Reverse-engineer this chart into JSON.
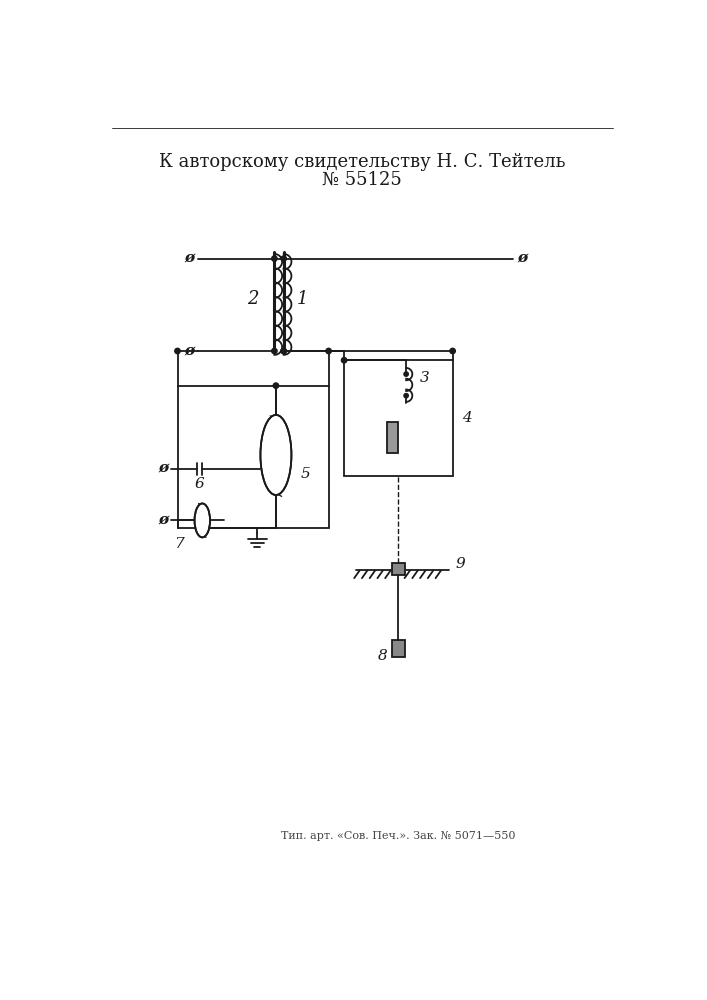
{
  "title_line1": "К авторскому свидетельству Н. С. Тейтель",
  "title_line2": "№ 55125",
  "footer": "Тип. арт. «Сов. Печ.». Зак. № 5071—550",
  "bg_color": "#ffffff",
  "line_color": "#1a1a1a"
}
